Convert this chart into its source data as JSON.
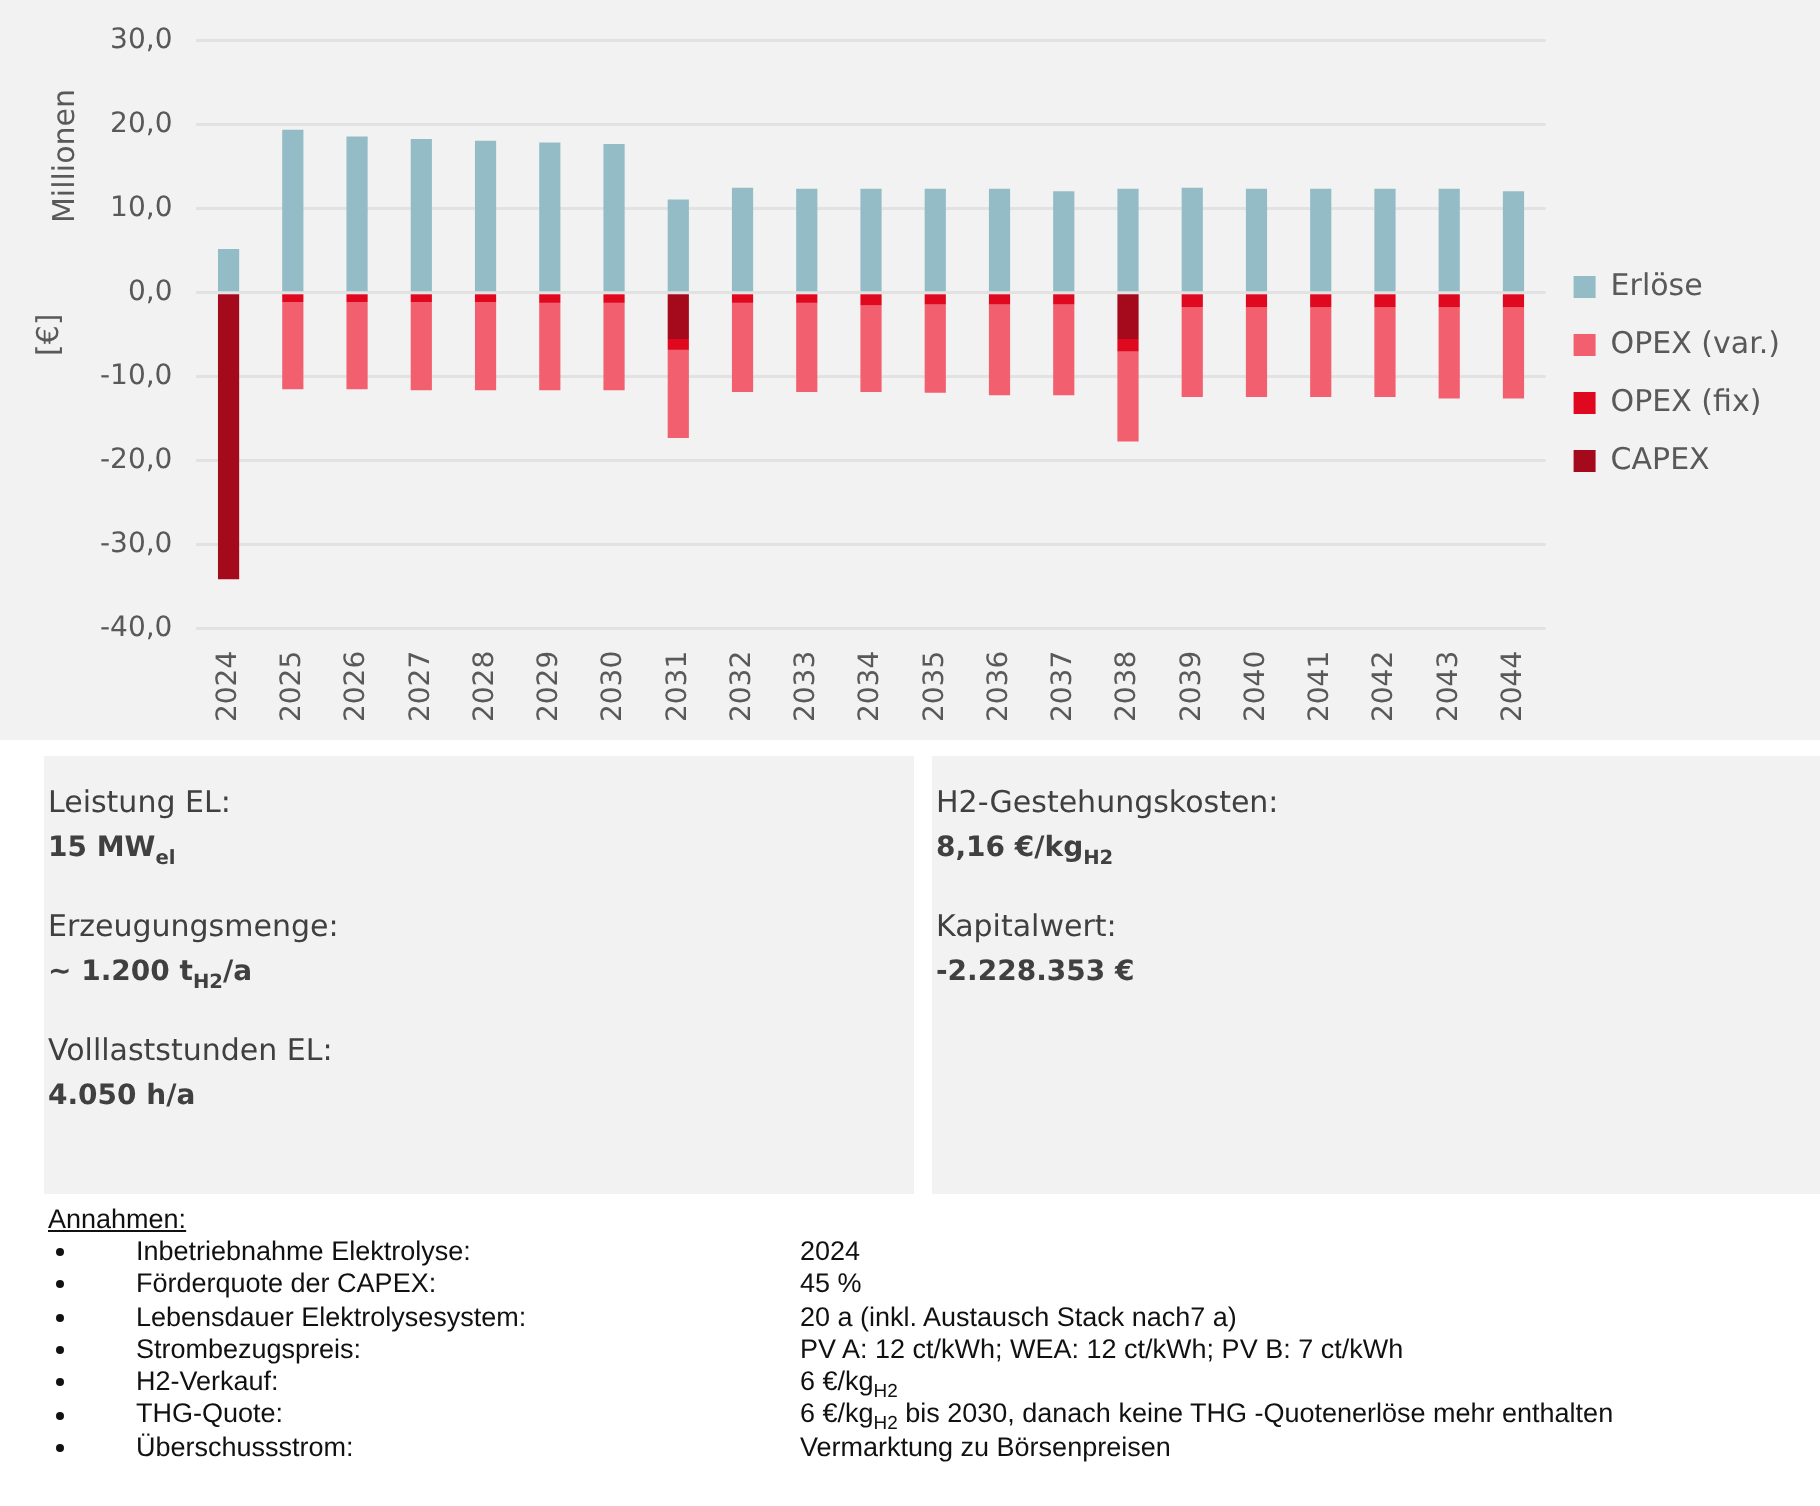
{
  "chart_data": [
    {
      "type": "bar",
      "stacked": true,
      "ylabel": "[€]",
      "annotations": [
        "Millionen"
      ],
      "categories": [
        "2024",
        "2025",
        "2026",
        "2027",
        "2028",
        "2029",
        "2030",
        "2031",
        "2032",
        "2033",
        "2034",
        "2035",
        "2036",
        "2037",
        "2038",
        "2039",
        "2040",
        "2041",
        "2042",
        "2043",
        "2044"
      ],
      "series": [
        {
          "name": "Erlöse",
          "color": "#93bcc6",
          "values": [
            5.2,
            19.4,
            18.6,
            18.3,
            18.1,
            17.9,
            17.7,
            11.1,
            12.5,
            12.4,
            12.4,
            12.4,
            12.4,
            12.1,
            12.4,
            12.5,
            12.4,
            12.4,
            12.4,
            12.4,
            12.1
          ]
        },
        {
          "name": "CAPEX",
          "color": "#a50a1c",
          "values": [
            -34.1,
            0,
            0,
            0,
            0,
            0,
            0,
            -5.5,
            0,
            0,
            0,
            0,
            0,
            0,
            -5.5,
            0,
            0,
            0,
            0,
            0,
            0
          ]
        },
        {
          "name": "OPEX (fix)",
          "color": "#e0081e",
          "values": [
            0,
            -1.1,
            -1.1,
            -1.1,
            -1.1,
            -1.2,
            -1.2,
            -1.3,
            -1.2,
            -1.2,
            -1.5,
            -1.4,
            -1.4,
            -1.4,
            -1.5,
            -1.7,
            -1.7,
            -1.7,
            -1.7,
            -1.7,
            -1.7
          ]
        },
        {
          "name": "OPEX (var.)",
          "color": "#f2606f",
          "values": [
            0,
            -10.4,
            -10.4,
            -10.5,
            -10.5,
            -10.4,
            -10.4,
            -10.5,
            -10.6,
            -10.6,
            -10.3,
            -10.5,
            -10.8,
            -10.8,
            -10.7,
            -10.7,
            -10.7,
            -10.7,
            -10.7,
            -10.9,
            -10.9
          ]
        }
      ],
      "ylim": [
        -40,
        30
      ],
      "yticks": [
        {
          "value": -40,
          "label": "-40,0"
        },
        {
          "value": -30,
          "label": "-30,0"
        },
        {
          "value": -20,
          "label": "-20,0"
        },
        {
          "value": -10,
          "label": "-10,0"
        },
        {
          "value": 0,
          "label": "0,0"
        },
        {
          "value": 10,
          "label": "10,0"
        },
        {
          "value": 20,
          "label": "20,0"
        },
        {
          "value": 30,
          "label": "30,0"
        }
      ],
      "grid": "y",
      "legend": "right"
    },
    {
      "type": "other",
      "annotations": [
        "Leistung EL:",
        "15 MW$_{el}$",
        "Erzeugungsmenge:",
        "~ 1.200 t$_{H2}$/a",
        "Volllaststunden EL:",
        "4.050 h/a"
      ]
    },
    {
      "type": "other",
      "annotations": [
        "H2-Gestehungskosten:",
        "8,16 €/kg$_{H2}$",
        "Kapitalwert:",
        "-2.228.353 €"
      ]
    },
    {
      "type": "other",
      "title": "Annahmen:",
      "annotations": [
        "Inbetriebnahme Elektrolyse:",
        "2024",
        "Förderquote der CAPEX:",
        "45 %",
        "Lebensdauer Elektrolysesystem:",
        "20 a (inkl. Austausch Stack nach7 a)",
        "Strombezugspreis:",
        "PV A: 12 ct/kWh; WEA: 12 ct/kWh; PV B: 7 ct/kWh",
        "H2-Verkauf:",
        "6 €/kg$_{H2}$",
        "THG-Quote:",
        "6 €/kg$_{H2}$ bis 2030, danach keine THG -Quotenerlöse mehr enthalten",
        "Überschussstrom:",
        "Vermarktung zu Börsenpreisen"
      ]
    }
  ]
}
